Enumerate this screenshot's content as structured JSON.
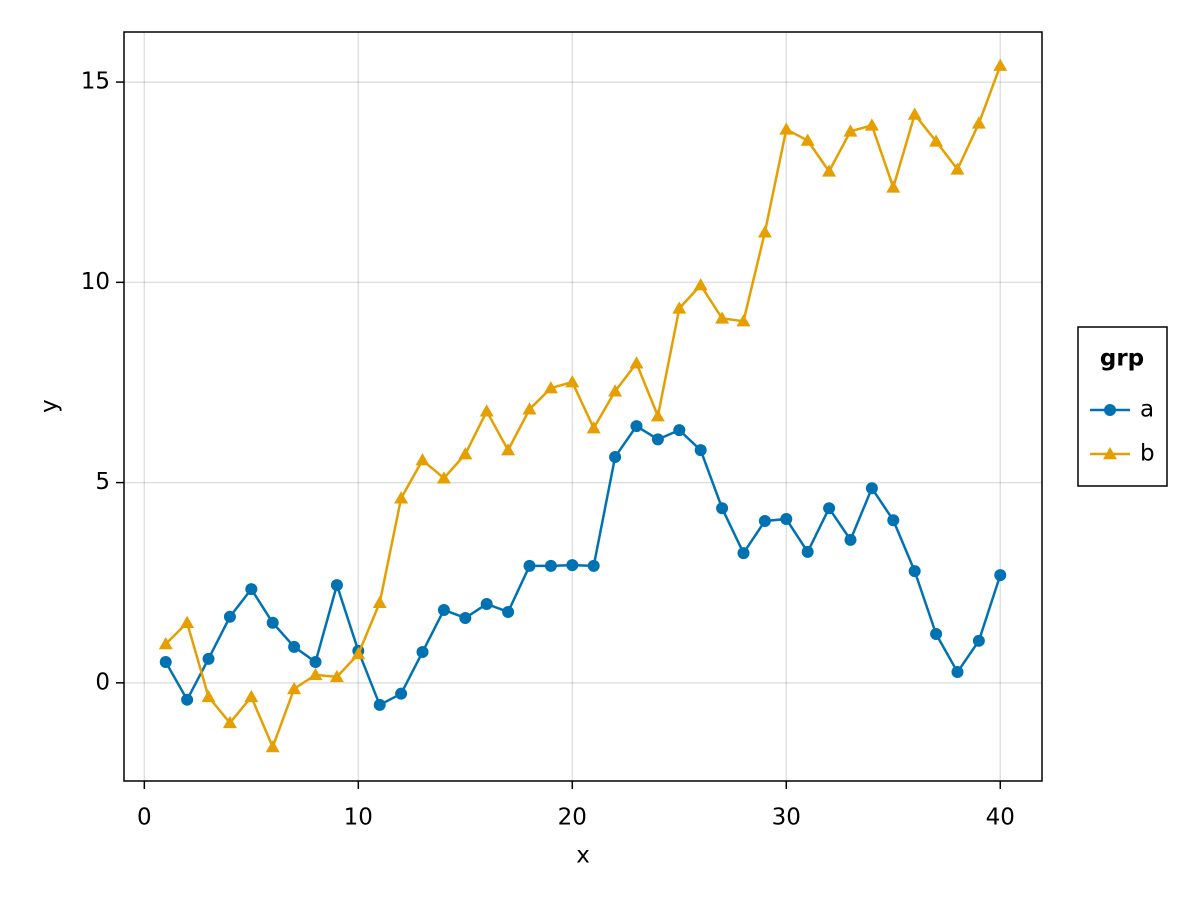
{
  "chart_data": {
    "type": "line",
    "x_label": "x",
    "y_label": "y",
    "x": [
      1,
      2,
      3,
      4,
      5,
      6,
      7,
      8,
      9,
      10,
      11,
      12,
      13,
      14,
      15,
      16,
      17,
      18,
      19,
      20,
      21,
      22,
      23,
      24,
      25,
      26,
      27,
      28,
      29,
      30,
      31,
      32,
      33,
      34,
      35,
      36,
      37,
      38,
      39,
      40
    ],
    "series": [
      {
        "name": "a",
        "color": "#0072b2",
        "marker": "circle",
        "values": [
          0.52,
          -0.42,
          0.6,
          1.65,
          2.34,
          1.5,
          0.9,
          0.52,
          2.44,
          0.8,
          -0.55,
          -0.27,
          0.77,
          1.82,
          1.62,
          1.97,
          1.77,
          2.92,
          2.92,
          2.94,
          2.92,
          5.64,
          6.41,
          6.08,
          6.31,
          5.81,
          4.36,
          3.24,
          4.04,
          4.09,
          3.27,
          4.36,
          3.57,
          4.86,
          4.06,
          2.79,
          1.22,
          0.27,
          1.05,
          2.69
        ]
      },
      {
        "name": "b",
        "color": "#e69f00",
        "marker": "triangle",
        "values": [
          0.97,
          1.5,
          -0.35,
          -1.0,
          -0.35,
          -1.6,
          -0.15,
          0.2,
          0.15,
          0.72,
          2.0,
          4.61,
          5.56,
          5.11,
          5.71,
          6.78,
          5.81,
          6.83,
          7.36,
          7.51,
          6.36,
          7.28,
          7.98,
          6.66,
          9.35,
          9.93,
          9.1,
          9.03,
          11.25,
          13.82,
          13.54,
          12.77,
          13.77,
          13.92,
          12.37,
          14.19,
          13.52,
          12.82,
          13.97,
          15.41
        ]
      }
    ],
    "legend_title": "grp",
    "legend": "right",
    "xlim": [
      -0.95,
      41.95
    ],
    "xticks": [
      0,
      10,
      20,
      30,
      40
    ],
    "ylim": [
      -2.45,
      16.25
    ],
    "yticks": [
      0,
      5,
      10,
      15
    ],
    "grid": true
  }
}
